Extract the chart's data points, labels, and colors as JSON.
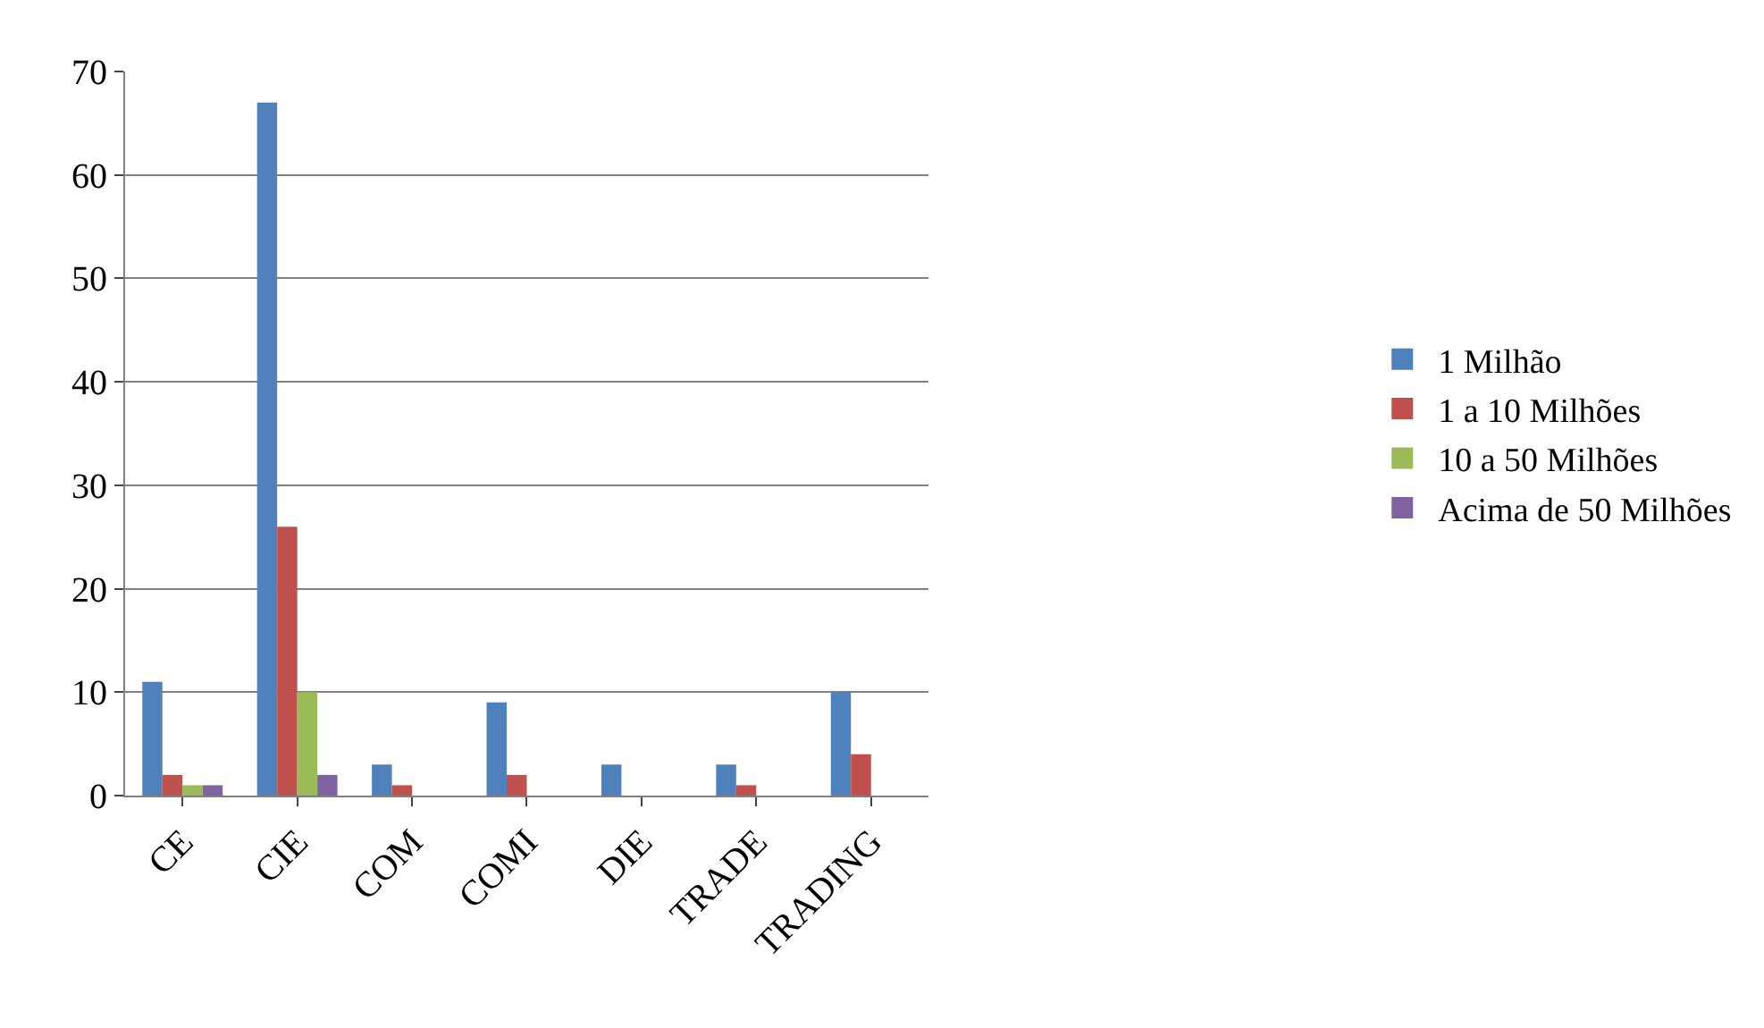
{
  "chart_data": {
    "type": "bar",
    "categories": [
      "CE",
      "CIE",
      "COM",
      "COMI",
      "DIE",
      "TRADE",
      "TRADING"
    ],
    "series": [
      {
        "name": "1 Milhão",
        "color": "#4f81bd",
        "values": [
          11,
          67,
          3,
          9,
          3,
          3,
          10
        ]
      },
      {
        "name": "1 a 10 Milhões",
        "color": "#c0504d",
        "values": [
          2,
          26,
          1,
          2,
          null,
          1,
          4
        ]
      },
      {
        "name": "10 a 50 Milhões",
        "color": "#9bbb59",
        "values": [
          1,
          10,
          null,
          null,
          null,
          null,
          null
        ]
      },
      {
        "name": "Acima de 50 Milhões",
        "color": "#8064a2",
        "values": [
          1,
          2,
          null,
          null,
          null,
          null,
          null
        ]
      }
    ],
    "ylim": [
      0,
      70
    ],
    "yticks": [
      0,
      10,
      20,
      30,
      40,
      50,
      60,
      70
    ],
    "grid": "y",
    "legend": "right"
  }
}
